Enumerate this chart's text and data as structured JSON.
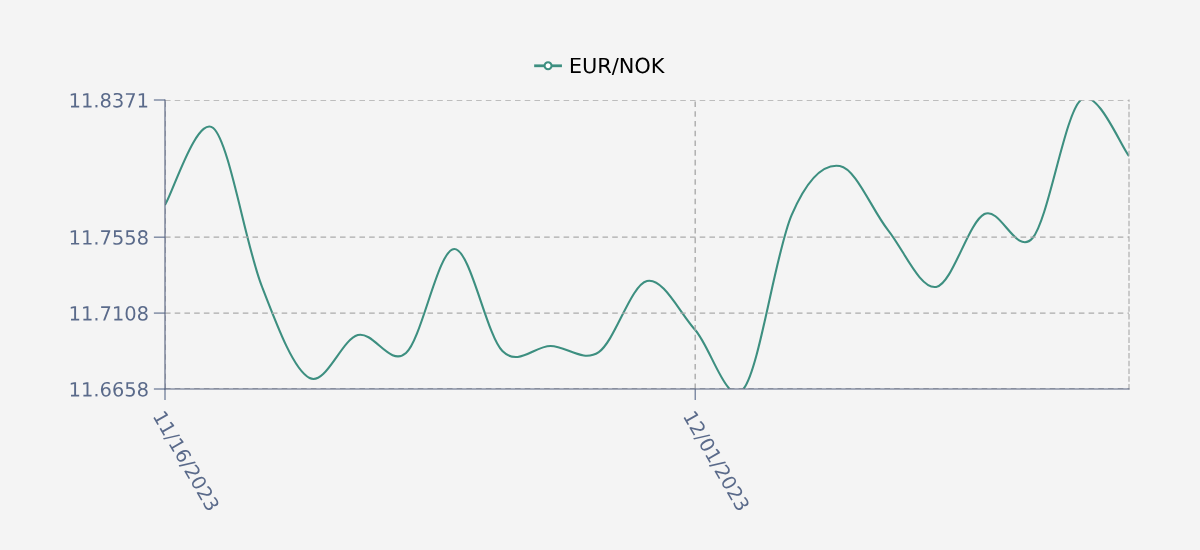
{
  "chart_data": {
    "type": "line",
    "categories": [
      "11/16/2023",
      null,
      null,
      null,
      null,
      null,
      null,
      null,
      null,
      null,
      null,
      "12/01/2023",
      null,
      null,
      null,
      null,
      null,
      null,
      null,
      null,
      null
    ],
    "series": [
      {
        "name": "EUR/NOK",
        "color": "#3d8f80",
        "values": [
          11.7749,
          11.8205,
          11.7274,
          11.6723,
          11.6978,
          11.6871,
          11.7488,
          11.6883,
          11.6913,
          11.6877,
          11.7298,
          11.7008,
          11.6658,
          11.7689,
          11.798,
          11.76,
          11.7263,
          11.7695,
          11.7553,
          11.8371,
          11.8039
        ]
      }
    ],
    "ylim": [
      11.6658,
      11.8371
    ],
    "yticks": [
      11.6658,
      11.7108,
      11.7558,
      11.8371
    ],
    "grid": true,
    "legend": "top",
    "line_style": "solid"
  }
}
